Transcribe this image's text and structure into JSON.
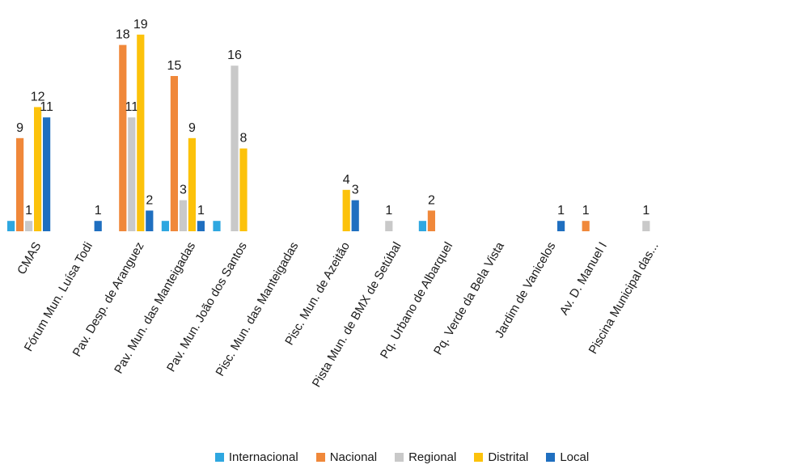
{
  "chart_data": {
    "type": "bar",
    "categories": [
      "CMAS",
      "Fórum Mun. Luísa Todi",
      "Pav. Desp. de Aranguez",
      "Pav. Mun. das Manteigadas",
      "Pav. Mun. João dos Santos",
      "Pisc. Mun. das Manteigadas",
      "Pisc. Mun. de Azeitão",
      "Pista Mun. de BMX de Setúbal",
      "Pq. Urbano de Albarquel",
      "Pq. Verde da Bela Vista",
      "Jardim de Vanicelos",
      "Av. D. Manuel I",
      "Piscina Municipal das..."
    ],
    "series": [
      {
        "name": "Internacional",
        "color": "#2ea7e0",
        "values": [
          1,
          null,
          null,
          1,
          1,
          null,
          null,
          null,
          1,
          null,
          null,
          null,
          null
        ]
      },
      {
        "name": "Nacional",
        "color": "#f0883a",
        "values": [
          9,
          null,
          18,
          15,
          null,
          null,
          null,
          null,
          2,
          null,
          null,
          1,
          null
        ]
      },
      {
        "name": "Regional",
        "color": "#c9c9c9",
        "values": [
          1,
          null,
          11,
          3,
          16,
          null,
          null,
          1,
          null,
          null,
          null,
          null,
          1
        ]
      },
      {
        "name": "Distrital",
        "color": "#fcc20b",
        "values": [
          12,
          null,
          19,
          9,
          8,
          null,
          4,
          null,
          null,
          null,
          null,
          null,
          null
        ]
      },
      {
        "name": "Local",
        "color": "#1f6fc0",
        "values": [
          11,
          1,
          2,
          1,
          null,
          null,
          3,
          null,
          null,
          null,
          1,
          null,
          null
        ]
      }
    ],
    "value_labels": [
      [
        null,
        null,
        null,
        null,
        null,
        null,
        null,
        null,
        null,
        null,
        null,
        null,
        null
      ],
      [
        9,
        null,
        18,
        15,
        null,
        null,
        null,
        null,
        2,
        null,
        null,
        1,
        null
      ],
      [
        1,
        null,
        11,
        3,
        16,
        null,
        null,
        1,
        null,
        null,
        null,
        null,
        1
      ],
      [
        12,
        null,
        19,
        9,
        8,
        null,
        4,
        null,
        null,
        null,
        null,
        null,
        null
      ],
      [
        11,
        1,
        2,
        1,
        null,
        null,
        3,
        null,
        null,
        null,
        1,
        null,
        null
      ]
    ],
    "ylim": [
      0,
      20
    ],
    "grid": false,
    "legend_position": "bottom"
  }
}
